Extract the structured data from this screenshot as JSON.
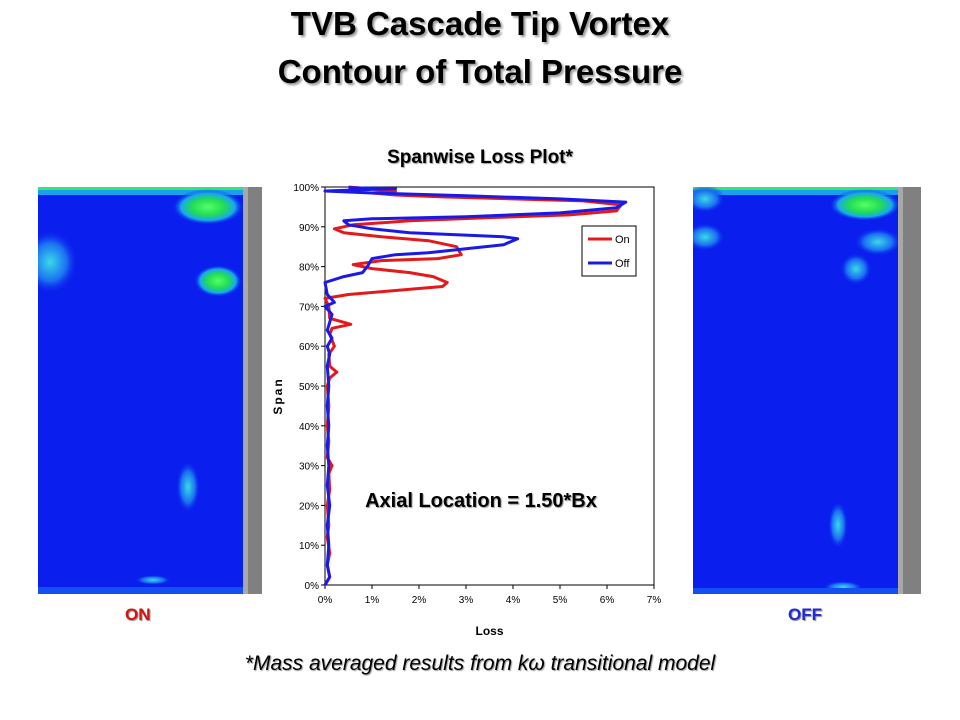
{
  "page": {
    "title_line1": "TVB Cascade Tip Vortex",
    "title_line2": "Contour of Total Pressure",
    "subtitle": "Spanwise Loss Plot*",
    "annotation": "Axial Location = 1.50*Bx",
    "footnote": "*Mass averaged results from kω transitional model",
    "label_on": "ON",
    "label_off": "OFF"
  },
  "colors": {
    "on": "#e41a1a",
    "off": "#1a1ae6",
    "contour_field": "#0a1eee",
    "contour_hot": "#22dd55",
    "contour_mid": "#19a8ec",
    "blade_gray": "#808080"
  },
  "chart_data": {
    "type": "line",
    "xlabel": "Loss",
    "ylabel": "Span",
    "xlim": [
      0,
      0.07
    ],
    "ylim": [
      0,
      1.0
    ],
    "x_ticks": [
      "0%",
      "1%",
      "2%",
      "3%",
      "4%",
      "5%",
      "6%",
      "7%"
    ],
    "y_ticks": [
      "0%",
      "10%",
      "20%",
      "30%",
      "40%",
      "50%",
      "60%",
      "70%",
      "80%",
      "90%",
      "100%"
    ],
    "legend_position": "right",
    "grid": false,
    "series": [
      {
        "name": "On",
        "points": [
          [
            0.0,
            0.0
          ],
          [
            0.001,
            0.02
          ],
          [
            0.0005,
            0.05
          ],
          [
            0.001,
            0.08
          ],
          [
            0.0005,
            0.12
          ],
          [
            0.0008,
            0.15
          ],
          [
            0.0005,
            0.2
          ],
          [
            0.001,
            0.24
          ],
          [
            0.0008,
            0.28
          ],
          [
            0.0015,
            0.3
          ],
          [
            0.0005,
            0.32
          ],
          [
            0.0008,
            0.36
          ],
          [
            0.0005,
            0.4
          ],
          [
            0.0008,
            0.45
          ],
          [
            0.0005,
            0.5
          ],
          [
            0.001,
            0.52
          ],
          [
            0.0025,
            0.535
          ],
          [
            0.001,
            0.55
          ],
          [
            0.0008,
            0.58
          ],
          [
            0.002,
            0.6
          ],
          [
            0.001,
            0.63
          ],
          [
            0.0015,
            0.645
          ],
          [
            0.0055,
            0.655
          ],
          [
            0.001,
            0.67
          ],
          [
            0.0008,
            0.7
          ],
          [
            0.0,
            0.72
          ],
          [
            0.005,
            0.73
          ],
          [
            0.015,
            0.74
          ],
          [
            0.025,
            0.75
          ],
          [
            0.026,
            0.76
          ],
          [
            0.023,
            0.775
          ],
          [
            0.018,
            0.785
          ],
          [
            0.01,
            0.795
          ],
          [
            0.006,
            0.805
          ],
          [
            0.012,
            0.815
          ],
          [
            0.024,
            0.82
          ],
          [
            0.029,
            0.83
          ],
          [
            0.028,
            0.85
          ],
          [
            0.022,
            0.865
          ],
          [
            0.012,
            0.875
          ],
          [
            0.004,
            0.885
          ],
          [
            0.002,
            0.895
          ],
          [
            0.006,
            0.905
          ],
          [
            0.018,
            0.915
          ],
          [
            0.035,
            0.923
          ],
          [
            0.052,
            0.93
          ],
          [
            0.062,
            0.94
          ],
          [
            0.063,
            0.955
          ],
          [
            0.055,
            0.965
          ],
          [
            0.04,
            0.97
          ],
          [
            0.025,
            0.975
          ],
          [
            0.015,
            0.98
          ],
          [
            0.01,
            0.985
          ],
          [
            0.015,
            0.99
          ],
          [
            0.01,
            0.995
          ],
          [
            0.005,
            1.0
          ]
        ]
      },
      {
        "name": "Off",
        "points": [
          [
            0.0,
            0.0
          ],
          [
            0.001,
            0.02
          ],
          [
            0.0005,
            0.05
          ],
          [
            0.0008,
            0.1
          ],
          [
            0.0005,
            0.15
          ],
          [
            0.001,
            0.2
          ],
          [
            0.0005,
            0.25
          ],
          [
            0.0008,
            0.3
          ],
          [
            0.0005,
            0.35
          ],
          [
            0.0008,
            0.4
          ],
          [
            0.0005,
            0.45
          ],
          [
            0.0008,
            0.5
          ],
          [
            0.0005,
            0.55
          ],
          [
            0.001,
            0.58
          ],
          [
            0.0005,
            0.6
          ],
          [
            0.0015,
            0.62
          ],
          [
            0.0005,
            0.64
          ],
          [
            0.001,
            0.66
          ],
          [
            0.0015,
            0.68
          ],
          [
            0.0,
            0.7
          ],
          [
            0.002,
            0.71
          ],
          [
            0.0005,
            0.73
          ],
          [
            0.0,
            0.76
          ],
          [
            0.004,
            0.775
          ],
          [
            0.008,
            0.785
          ],
          [
            0.009,
            0.8
          ],
          [
            0.01,
            0.82
          ],
          [
            0.015,
            0.83
          ],
          [
            0.022,
            0.835
          ],
          [
            0.03,
            0.845
          ],
          [
            0.038,
            0.855
          ],
          [
            0.041,
            0.87
          ],
          [
            0.038,
            0.875
          ],
          [
            0.028,
            0.88
          ],
          [
            0.018,
            0.885
          ],
          [
            0.01,
            0.895
          ],
          [
            0.005,
            0.905
          ],
          [
            0.004,
            0.915
          ],
          [
            0.01,
            0.92
          ],
          [
            0.03,
            0.925
          ],
          [
            0.05,
            0.935
          ],
          [
            0.062,
            0.948
          ],
          [
            0.064,
            0.962
          ],
          [
            0.05,
            0.97
          ],
          [
            0.03,
            0.978
          ],
          [
            0.01,
            0.985
          ],
          [
            0.0,
            0.99
          ],
          [
            0.01,
            0.994
          ],
          [
            0.015,
            0.996
          ],
          [
            0.005,
            0.998
          ]
        ]
      }
    ]
  }
}
